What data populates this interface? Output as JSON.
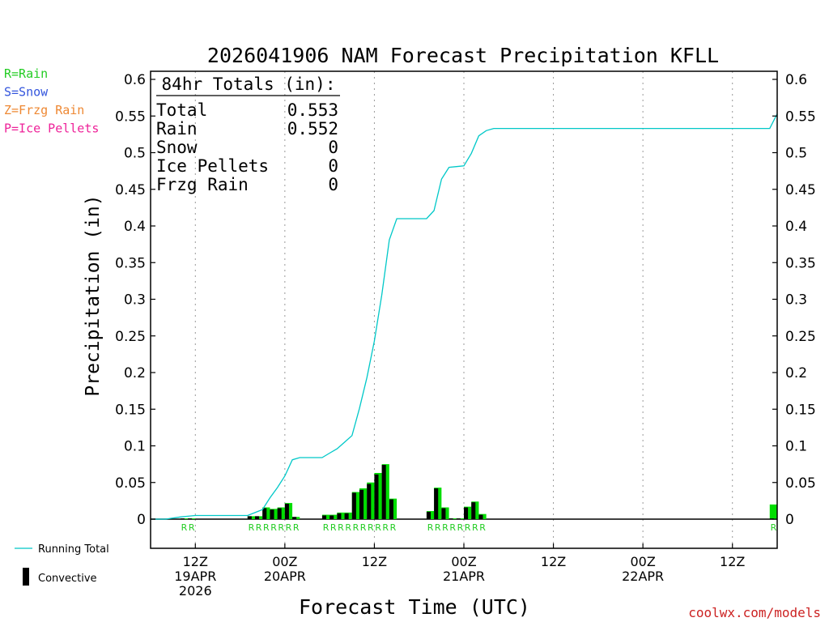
{
  "chart_data": {
    "type": "bar",
    "title": "2026041906 NAM Forecast Precipitation KFLL",
    "ylabel": "Precipitation (in)",
    "xlabel": "Forecast Time (UTC)",
    "ylim": [
      -0.038,
      0.605
    ],
    "y_ticks": [
      0,
      0.05,
      0.1,
      0.15,
      0.2,
      0.25,
      0.3,
      0.35,
      0.4,
      0.45,
      0.5,
      0.55,
      0.6
    ],
    "y_tick_labels": [
      "0",
      "0.05",
      "0.1",
      "0.15",
      "0.2",
      "0.25",
      "0.3",
      "0.35",
      "0.4",
      "0.45",
      "0.5",
      "0.55",
      "0.6"
    ],
    "x_range_hours": [
      0,
      84
    ],
    "x_ticks": [
      {
        "hour": 6,
        "l1": "12Z",
        "l2": "19APR",
        "l3": "2026"
      },
      {
        "hour": 18,
        "l1": "00Z",
        "l2": "20APR",
        "l3": ""
      },
      {
        "hour": 30,
        "l1": "12Z",
        "l2": "",
        "l3": ""
      },
      {
        "hour": 42,
        "l1": "00Z",
        "l2": "21APR",
        "l3": ""
      },
      {
        "hour": 54,
        "l1": "12Z",
        "l2": "",
        "l3": ""
      },
      {
        "hour": 66,
        "l1": "00Z",
        "l2": "22APR",
        "l3": ""
      },
      {
        "hour": 78,
        "l1": "12Z",
        "l2": "",
        "l3": ""
      }
    ],
    "series": [
      {
        "name": "Rain",
        "color": "#00dd00",
        "x": [
          5,
          6,
          14,
          15,
          16,
          17,
          18,
          19,
          20,
          24,
          25,
          26,
          27,
          28,
          29,
          30,
          31,
          32,
          33,
          38,
          39,
          40,
          41,
          42,
          43,
          44,
          45,
          84
        ],
        "values": [
          0.001,
          0.001,
          0.004,
          0.004,
          0.016,
          0.014,
          0.016,
          0.022,
          0.003,
          0.006,
          0.006,
          0.009,
          0.009,
          0.037,
          0.042,
          0.05,
          0.063,
          0.075,
          0.028,
          0.011,
          0.043,
          0.016,
          0.001,
          0.001,
          0.017,
          0.024,
          0.007,
          0.02
        ]
      },
      {
        "name": "Convective",
        "color": "#000000",
        "x": [
          5,
          6,
          14,
          15,
          16,
          17,
          18,
          19,
          20,
          24,
          25,
          26,
          27,
          28,
          29,
          30,
          31,
          32,
          33,
          38,
          39,
          40,
          41,
          42,
          43,
          44,
          45,
          84
        ],
        "values": [
          0.001,
          0.001,
          0.004,
          0.004,
          0.015,
          0.013,
          0.015,
          0.021,
          0.003,
          0.005,
          0.005,
          0.008,
          0.008,
          0.036,
          0.04,
          0.048,
          0.061,
          0.074,
          0.027,
          0.01,
          0.042,
          0.015,
          0.001,
          0.001,
          0.016,
          0.023,
          0.006,
          0.001
        ]
      },
      {
        "name": "Running Total",
        "type": "line",
        "color": "#00c8c8",
        "x": [
          0,
          2,
          4,
          5,
          6,
          7,
          8,
          9,
          10,
          11,
          12,
          13,
          14,
          15,
          16,
          17,
          18,
          19,
          20,
          21,
          22,
          23,
          24,
          25,
          26,
          27,
          28,
          29,
          30,
          31,
          32,
          33,
          34,
          35,
          36,
          37,
          38,
          39,
          40,
          41,
          42,
          43,
          44,
          45,
          46,
          60,
          70,
          80,
          83,
          84
        ],
        "values": [
          0,
          0,
          0.003,
          0.004,
          0.005,
          0.005,
          0.005,
          0.005,
          0.005,
          0.005,
          0.005,
          0.005,
          0.009,
          0.013,
          0.029,
          0.043,
          0.059,
          0.081,
          0.084,
          0.084,
          0.084,
          0.084,
          0.09,
          0.096,
          0.105,
          0.114,
          0.151,
          0.193,
          0.243,
          0.306,
          0.381,
          0.41,
          0.41,
          0.41,
          0.41,
          0.41,
          0.421,
          0.464,
          0.48,
          0.481,
          0.482,
          0.499,
          0.523,
          0.53,
          0.533,
          0.533,
          0.533,
          0.533,
          0.533,
          0.553
        ]
      }
    ],
    "rain_markers": [
      {
        "hour": 5,
        "label": "R"
      },
      {
        "hour": 6,
        "label": "R"
      },
      {
        "hour": 14,
        "label": "R"
      },
      {
        "hour": 15,
        "label": "R"
      },
      {
        "hour": 16,
        "label": "R"
      },
      {
        "hour": 17,
        "label": "R"
      },
      {
        "hour": 18,
        "label": "R"
      },
      {
        "hour": 19,
        "label": "R"
      },
      {
        "hour": 20,
        "label": "R"
      },
      {
        "hour": 24,
        "label": "R"
      },
      {
        "hour": 25,
        "label": "R"
      },
      {
        "hour": 26,
        "label": "R"
      },
      {
        "hour": 27,
        "label": "R"
      },
      {
        "hour": 28,
        "label": "R"
      },
      {
        "hour": 29,
        "label": "R"
      },
      {
        "hour": 30,
        "label": "R"
      },
      {
        "hour": 31,
        "label": "R"
      },
      {
        "hour": 32,
        "label": "R"
      },
      {
        "hour": 33,
        "label": "R"
      },
      {
        "hour": 38,
        "label": "R"
      },
      {
        "hour": 39,
        "label": "R"
      },
      {
        "hour": 40,
        "label": "R"
      },
      {
        "hour": 41,
        "label": "R"
      },
      {
        "hour": 42,
        "label": "R"
      },
      {
        "hour": 43,
        "label": "R"
      },
      {
        "hour": 44,
        "label": "R"
      },
      {
        "hour": 45,
        "label": "R"
      },
      {
        "hour": 84,
        "label": "R"
      }
    ],
    "totals": {
      "header": "84hr Totals (in):",
      "rows": [
        {
          "label": "Total",
          "value": "0.553"
        },
        {
          "label": "Rain",
          "value": "0.552"
        },
        {
          "label": "Snow",
          "value": "0"
        },
        {
          "label": "Ice Pellets",
          "value": "0"
        },
        {
          "label": "Frzg Rain",
          "value": "0"
        }
      ]
    },
    "type_legend": [
      {
        "label": "R=Rain",
        "color": "#22cc22"
      },
      {
        "label": "S=Snow",
        "color": "#3355dd"
      },
      {
        "label": "Z=Frzg Rain",
        "color": "#ee8833"
      },
      {
        "label": "P=Ice Pellets",
        "color": "#ee2299"
      }
    ],
    "series_legend": {
      "line_label": "Running Total",
      "bar_label": "Convective"
    },
    "credit": "coolwx.com/models"
  }
}
